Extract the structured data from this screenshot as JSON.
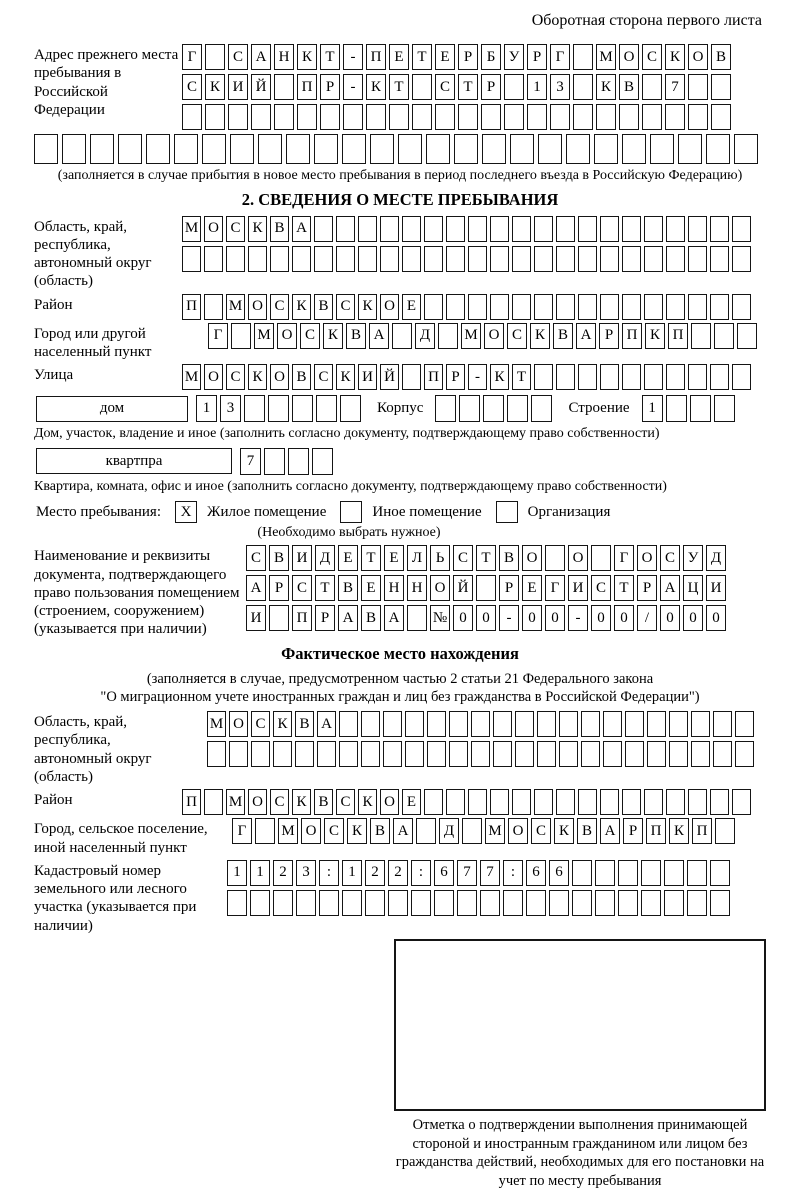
{
  "header": {
    "back_side_note": "Оборотная сторона первого листа"
  },
  "section2": {
    "title": "2. СВЕДЕНИЯ О МЕСТЕ ПРЕБЫВАНИЯ",
    "factual_title": "Фактическое место нахождения",
    "factual_note1": "(заполняется в случае, предусмотренном частью 2 статьи 21 Федерального закона",
    "factual_note2": "\"О миграционном учете иностранных граждан и лиц без гражданства в Российской Федерации\")"
  },
  "labels": {
    "prev_address": "Адрес прежнего места пребывания в Российской Федерации",
    "prev_address_note": "(заполняется в случае прибытия в новое место пребывания в период последнего въезда в Российскую Федерацию)",
    "region": "Область, край, республика, автономный округ (область)",
    "rayon": "Район",
    "gorod": "Город или другой населенный пункт",
    "ulitsa": "Улица",
    "dom_box": "дом",
    "korpus": "Корпус",
    "stroenie": "Строение",
    "dom_caption": "Дом, участок, владение и иное (заполнить согласно документу, подтверждающему право собственности)",
    "kvartira_box": "квартпра",
    "kvartira_caption": "Квартира, комната, офис и иное (заполнить согласно документу, подтверждающему право собственности)",
    "mesto_prebyvaniya": "Место пребывания:",
    "zhiloe": "Жилое помещение",
    "inoe": "Иное помещение",
    "organizatsiya": "Организация",
    "mesto_note": "(Необходимо выбрать нужное)",
    "doc_label": "Наименование и реквизиты документа, подтверждающего право пользования помещением (строением, сооружением) (указывается при наличии)",
    "f_region": "Область, край, республика, автономный округ (область)",
    "f_rayon": "Район",
    "f_gorod": "Город, сельское поселение, иной населенный пункт",
    "kadastr": "Кадастровый номер земельного или лесного участка (указывается при наличии)",
    "stamp_caption": "Отметка о подтверждении выполнения принимающей стороной и иностранным гражданином или лицом без гражданства действий, необходимых для его постановки на учет по месту пребывания"
  },
  "checkboxes": {
    "zhiloe_mark": "X",
    "inoe_mark": "",
    "org_mark": ""
  },
  "grids": {
    "prev1": {
      "cells": "Г САНКТ-ПЕТЕРБУРГ МОСКОВ",
      "len": 24
    },
    "prev2": {
      "cells": "СКИЙ ПР-КТ СТР 13 КВ 7",
      "len": 24
    },
    "prev3": {
      "cells": "",
      "len": 24
    },
    "prev4": {
      "cells": "",
      "len": 26
    },
    "region1": {
      "cells": "МОСКВА",
      "len": 26
    },
    "region2": {
      "cells": "",
      "len": 26
    },
    "rayon": {
      "cells": "П МОСКВСКОЕ",
      "len": 26
    },
    "gorod": {
      "cells": "Г МОСКВА Д МОСКВАРПКП",
      "len": 24
    },
    "ulitsa": {
      "cells": "МОСКОВСКИЙ ПР-КТ",
      "len": 26
    },
    "dom": {
      "cells": "13",
      "len": 7
    },
    "korpus": {
      "cells": "",
      "len": 5
    },
    "stroenie": {
      "cells": "1",
      "len": 4
    },
    "kvartira": {
      "cells": "7",
      "len": 4
    },
    "doc1": {
      "cells": "СВИДЕТЕЛЬСТВО О ГОСУД",
      "len": 21
    },
    "doc2": {
      "cells": "АРСТВЕННОЙ РЕГИСТРАЦИ",
      "len": 21
    },
    "doc3": {
      "cells": "И ПРАВА №00-00-00/000",
      "len": 21
    },
    "f_region1": {
      "cells": "МОСКВА",
      "len": 25
    },
    "f_region2": {
      "cells": "",
      "len": 25
    },
    "f_rayon": {
      "cells": "П МОСКВСКОЕ",
      "len": 26
    },
    "f_gorod": {
      "cells": "Г МОСКВА Д МОСКВАРПКП",
      "len": 22
    },
    "kadastr1": {
      "cells": "1123:122:677:66",
      "len": 22
    },
    "kadastr2": {
      "cells": "",
      "len": 22
    }
  }
}
